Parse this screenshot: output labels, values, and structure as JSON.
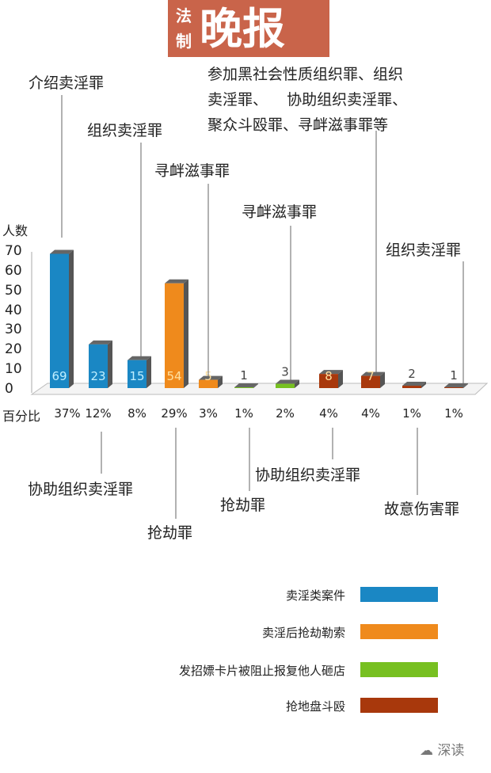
{
  "logo": {
    "small1": "法",
    "small2": "制",
    "big": "晚报"
  },
  "chart_data": {
    "type": "bar",
    "ylabel": "人数",
    "ylim": [
      0,
      70
    ],
    "yticks": [
      0,
      10,
      20,
      30,
      40,
      50,
      60,
      70
    ],
    "percent_label": "百分比",
    "categories": [
      "介绍卖淫罪",
      "协助组织卖淫罪",
      "组织卖淫罪",
      "抢劫罪",
      "寻衅滋事罪",
      "抢劫罪",
      "寻衅滋事罪",
      "协助组织卖淫罪",
      "参加黑社会性质组织罪、组织\n卖淫罪、    协助组织卖淫罪、\n聚众斗殴罪、寻衅滋事罪等",
      "故意伤害罪",
      "组织卖淫罪"
    ],
    "values": [
      69,
      23,
      15,
      54,
      5,
      1,
      3,
      8,
      7,
      2,
      1
    ],
    "percents": [
      "37%",
      "12%",
      "8%",
      "29%",
      "3%",
      "1%",
      "2%",
      "4%",
      "4%",
      "1%",
      "1%"
    ],
    "series_index": [
      0,
      0,
      0,
      1,
      1,
      2,
      2,
      3,
      3,
      3,
      3
    ],
    "legend": [
      {
        "name": "卖淫类案件",
        "color": "#1a87c4"
      },
      {
        "name": "卖淫后抢劫勒索",
        "color": "#ef8a1c"
      },
      {
        "name": "发招嫖卡片被阻止报复他人砸店",
        "color": "#77c021"
      },
      {
        "name": "抢地盘斗殴",
        "color": "#a8380c"
      }
    ],
    "legend_placement": "bottom-right",
    "grid": false
  },
  "watermark": "深读"
}
